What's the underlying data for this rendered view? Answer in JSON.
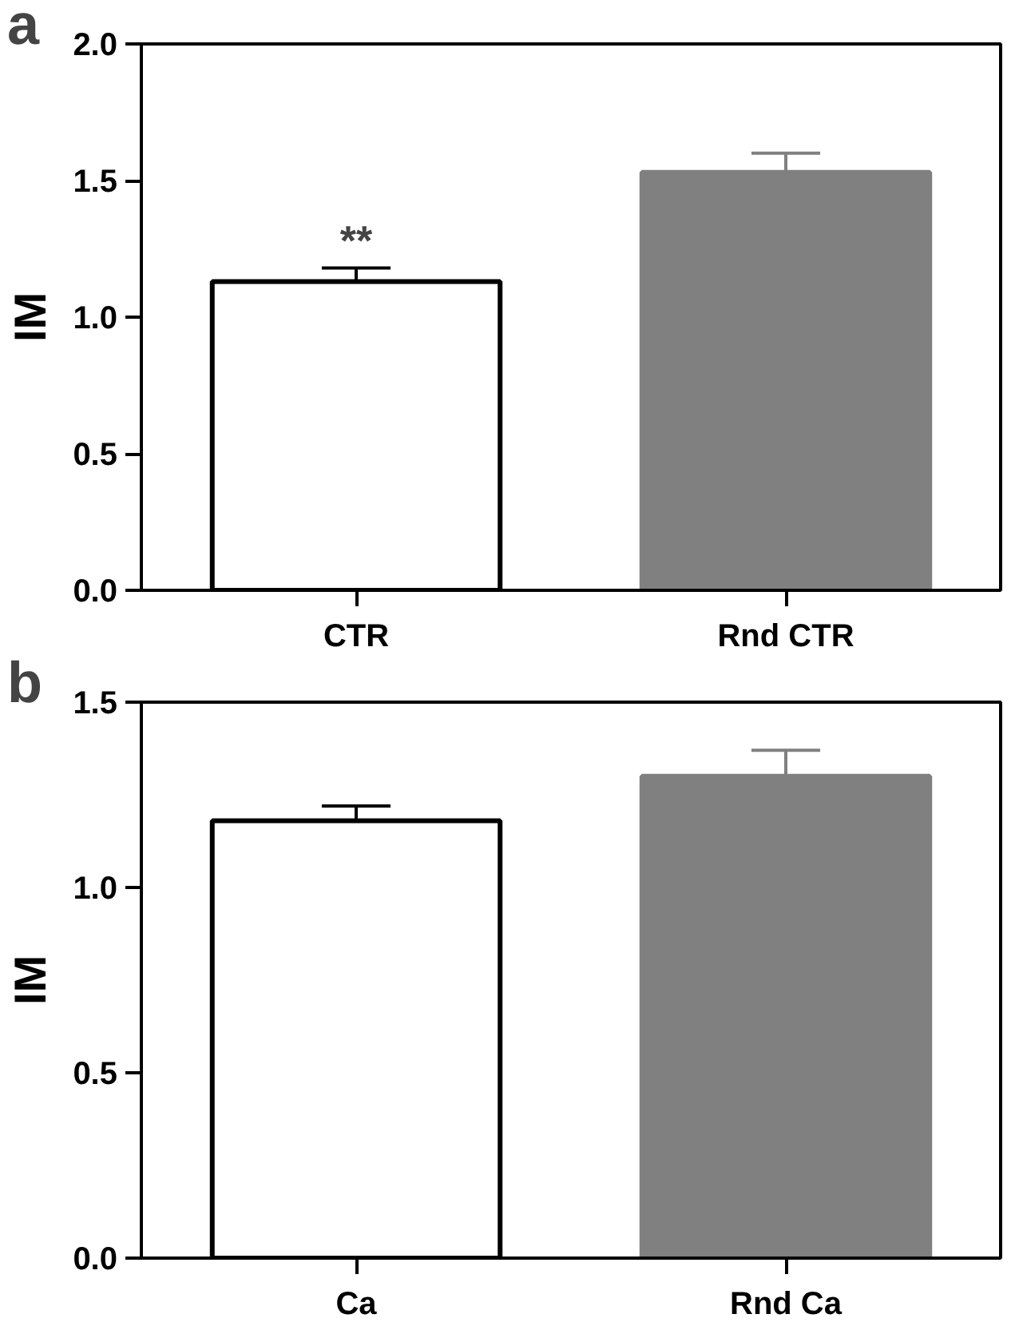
{
  "chart_data": [
    {
      "type": "bar",
      "title": "a",
      "ylabel": "IM",
      "categories": [
        "CTR",
        "Rnd CTR"
      ],
      "values": [
        1.13,
        1.53
      ],
      "colors": [
        "#ffffff",
        "#808080"
      ],
      "errors": [
        [
          1.13,
          1.18
        ],
        [
          1.53,
          1.6
        ]
      ],
      "ylim": [
        0,
        2.0
      ],
      "yticks": [
        {
          "value": 0,
          "label": "0.0"
        },
        {
          "value": 0.5,
          "label": "0.5"
        },
        {
          "value": 1,
          "label": "1.0"
        },
        {
          "value": 1.5,
          "label": "1.5"
        },
        {
          "value": 2,
          "label": "2.0"
        }
      ],
      "grid": false,
      "annotations": [
        "**"
      ]
    },
    {
      "type": "bar",
      "title": "b",
      "ylabel": "IM",
      "categories": [
        "Ca",
        "Rnd Ca"
      ],
      "values": [
        1.18,
        1.3
      ],
      "colors": [
        "#ffffff",
        "#808080"
      ],
      "errors": [
        [
          1.18,
          1.22
        ],
        [
          1.3,
          1.37
        ]
      ],
      "ylim": [
        0,
        1.5
      ],
      "yticks": [
        {
          "value": 0,
          "label": "0.0"
        },
        {
          "value": 0.5,
          "label": "0.5"
        },
        {
          "value": 1,
          "label": "1.0"
        },
        {
          "value": 1.5,
          "label": "1.5"
        }
      ],
      "grid": false
    }
  ]
}
